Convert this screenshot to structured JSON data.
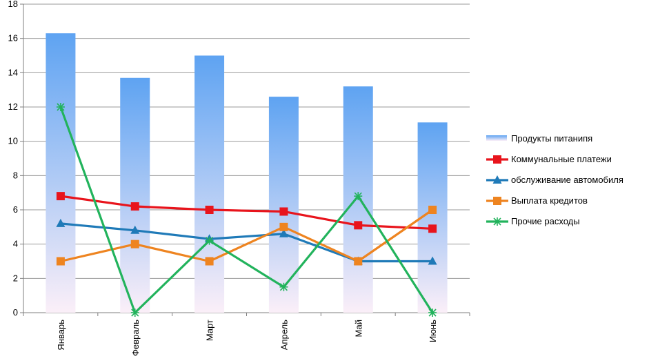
{
  "chart_data": {
    "type": "bar+line",
    "categories": [
      "Январь",
      "Февраль",
      "Март",
      "Апрель",
      "Май",
      "Июнь"
    ],
    "ylim": [
      0,
      18
    ],
    "yticks": [
      0,
      2,
      4,
      6,
      8,
      10,
      12,
      14,
      16,
      18
    ],
    "grid": true,
    "legend_position": "right",
    "title": "",
    "xlabel": "",
    "ylabel": "",
    "bar_series": {
      "name": "Продукты питанипя",
      "values": [
        16.3,
        13.7,
        15.0,
        12.6,
        13.2,
        11.1
      ],
      "color_top": "#5ea3f2",
      "color_bottom": "#fbeff8"
    },
    "line_series": [
      {
        "name": "Коммунальные платежи",
        "values": [
          6.8,
          6.2,
          6.0,
          5.9,
          5.1,
          4.9
        ],
        "color": "#e8141c",
        "marker": "square"
      },
      {
        "name": "обслуживание автомобиля",
        "values": [
          5.2,
          4.8,
          4.3,
          4.6,
          3.0,
          3.0
        ],
        "color": "#1f7ab8",
        "marker": "triangle"
      },
      {
        "name": "Выплата кредитов",
        "values": [
          3.0,
          4.0,
          3.0,
          5.0,
          3.0,
          6.0
        ],
        "color": "#ee8420",
        "marker": "square"
      },
      {
        "name": "Прочие расходы",
        "values": [
          12.0,
          0.0,
          4.2,
          1.5,
          6.8,
          0.0
        ],
        "color": "#22b35c",
        "marker": "star"
      }
    ]
  }
}
